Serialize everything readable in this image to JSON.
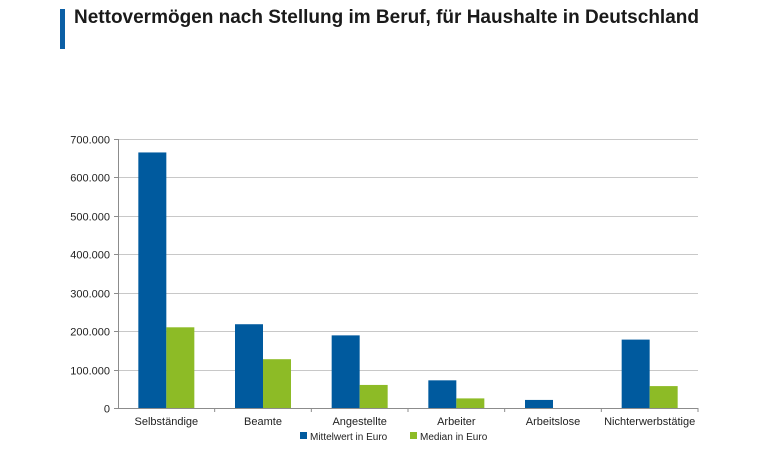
{
  "header": {
    "title": "Nettovermögen nach Stellung im Beruf, für Haushalte in Deutschland"
  },
  "chart_data": {
    "type": "bar",
    "title": "Nettovermögen nach Stellung im Beruf, für Haushalte in Deutschland",
    "xlabel": "",
    "ylabel": "",
    "categories": [
      "Selbständige",
      "Beamte",
      "Angestellte",
      "Arbeiter",
      "Arbeitslose",
      "Nichterwerbstätige"
    ],
    "series": [
      {
        "name": "Mittelwert in Euro",
        "color": "#005a9e",
        "values": [
          665000,
          218000,
          189000,
          72000,
          21000,
          178000
        ]
      },
      {
        "name": "Median in Euro",
        "color": "#8dbb26",
        "values": [
          210000,
          127000,
          60000,
          25000,
          0,
          57000
        ]
      }
    ],
    "ylim": [
      0,
      700000
    ],
    "yticks": [
      0,
      100000,
      200000,
      300000,
      400000,
      500000,
      600000,
      700000
    ],
    "ytick_labels": [
      "0",
      "100.000",
      "200.000",
      "300.000",
      "400.000",
      "500.000",
      "600.000",
      "700.000"
    ],
    "grid": true,
    "legend_position": "bottom-center"
  },
  "colors": {
    "accent": "#0b5fa5",
    "grid": "#c8c8c8",
    "axis": "#8c8c8c"
  }
}
